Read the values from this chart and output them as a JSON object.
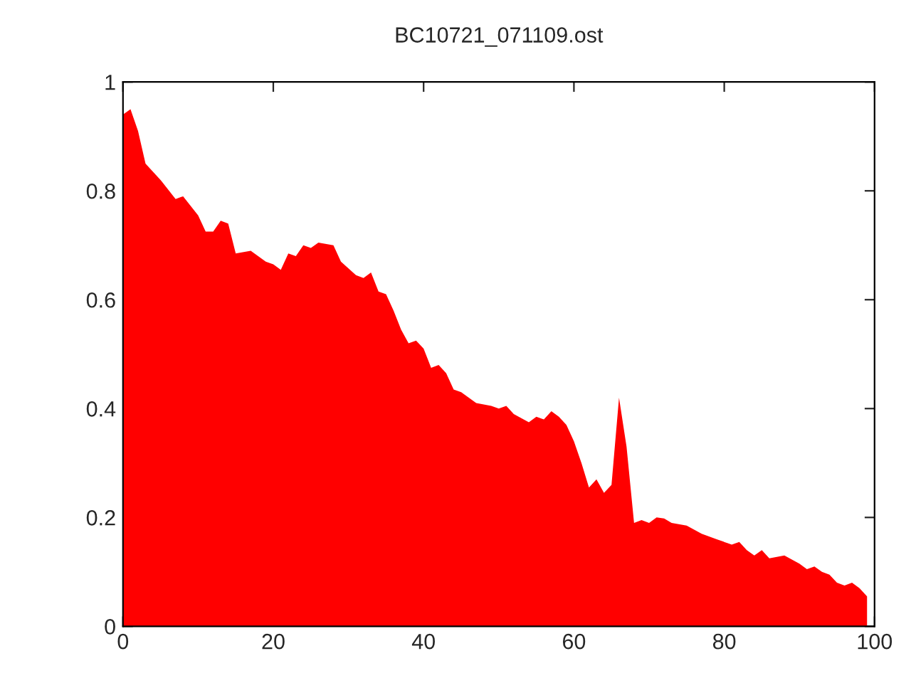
{
  "chart_data": {
    "type": "area",
    "title": "BC10721_071109.ost",
    "series": [
      {
        "color": "#ff0000",
        "x": [
          0,
          1,
          2,
          3,
          5,
          7,
          8,
          10,
          11,
          12,
          13,
          14,
          15,
          17,
          19,
          20,
          21,
          22,
          23,
          24,
          25,
          26,
          28,
          29,
          31,
          32,
          33,
          34,
          35,
          36,
          37,
          38,
          39,
          40,
          41,
          42,
          43,
          44,
          45,
          47,
          49,
          50,
          51,
          52,
          54,
          55,
          56,
          57,
          58,
          59,
          60,
          61,
          62,
          63,
          64,
          65,
          66,
          67,
          68,
          69,
          70,
          71,
          72,
          73,
          75,
          77,
          79,
          81,
          82,
          83,
          84,
          85,
          86,
          88,
          90,
          91,
          92,
          93,
          94,
          95,
          96,
          97,
          98,
          99
        ],
        "values": [
          0.94,
          0.95,
          0.91,
          0.85,
          0.82,
          0.785,
          0.79,
          0.755,
          0.725,
          0.725,
          0.745,
          0.74,
          0.685,
          0.69,
          0.67,
          0.665,
          0.655,
          0.685,
          0.68,
          0.7,
          0.695,
          0.705,
          0.7,
          0.67,
          0.645,
          0.64,
          0.65,
          0.615,
          0.61,
          0.58,
          0.545,
          0.52,
          0.525,
          0.51,
          0.475,
          0.48,
          0.465,
          0.435,
          0.43,
          0.41,
          0.405,
          0.4,
          0.405,
          0.39,
          0.375,
          0.385,
          0.38,
          0.395,
          0.385,
          0.37,
          0.34,
          0.3,
          0.255,
          0.27,
          0.245,
          0.26,
          0.42,
          0.33,
          0.19,
          0.195,
          0.19,
          0.2,
          0.198,
          0.19,
          0.185,
          0.17,
          0.16,
          0.15,
          0.155,
          0.14,
          0.13,
          0.14,
          0.125,
          0.13,
          0.115,
          0.105,
          0.11,
          0.1,
          0.095,
          0.08,
          0.075,
          0.08,
          0.07,
          0.055
        ]
      }
    ],
    "xlim": [
      0,
      100
    ],
    "ylim": [
      0,
      1
    ],
    "xticks": [
      0,
      20,
      40,
      60,
      80,
      100
    ],
    "yticks": [
      0,
      0.2,
      0.4,
      0.6,
      0.8,
      1
    ],
    "grid": false,
    "legend": false
  }
}
